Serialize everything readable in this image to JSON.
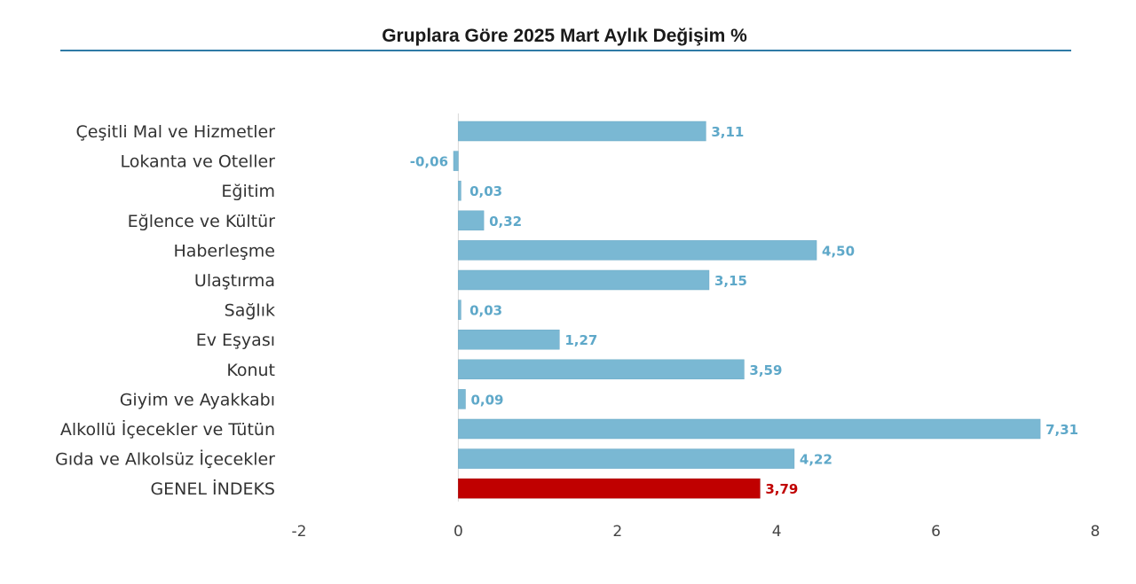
{
  "chart_data": {
    "type": "bar",
    "orientation": "horizontal",
    "title": "Gruplara Göre 2025 Mart Aylık Değişim %",
    "categories": [
      "Çeşitli Mal ve Hizmetler",
      "Lokanta ve Oteller",
      "Eğitim",
      "Eğlence ve Kültür",
      "Haberleşme",
      "Ulaştırma",
      "Sağlık",
      "Ev Eşyası",
      "Konut",
      "Giyim ve Ayakkabı",
      "Alkollü İçecekler ve Tütün",
      "Gıda ve Alkolsüz İçecekler",
      "GENEL İNDEKS"
    ],
    "values": [
      3.11,
      -0.06,
      0.03,
      0.32,
      4.5,
      3.15,
      0.03,
      1.27,
      3.59,
      0.09,
      7.31,
      4.22,
      3.79
    ],
    "value_labels": [
      "3,11",
      "-0,06",
      "0,03",
      "0,32",
      "4,50",
      "3,15",
      "0,03",
      "1,27",
      "3,59",
      "0,09",
      "7,31",
      "4,22",
      "3,79"
    ],
    "highlight_category": "GENEL İNDEKS",
    "xlim": [
      -2,
      8
    ],
    "xticks": [
      -2,
      0,
      2,
      4,
      6,
      8
    ],
    "xtick_labels": [
      "-2",
      "0",
      "2",
      "4",
      "6",
      "8"
    ],
    "grid": false,
    "legend": "none",
    "colors": {
      "bar": "#7ab8d3",
      "highlight_bar": "#c00000",
      "value_label": "#5ea8c9",
      "highlight_label": "#c00000",
      "title_rule": "#2e7aa6",
      "zero_axis": "#d9d9d9"
    }
  }
}
